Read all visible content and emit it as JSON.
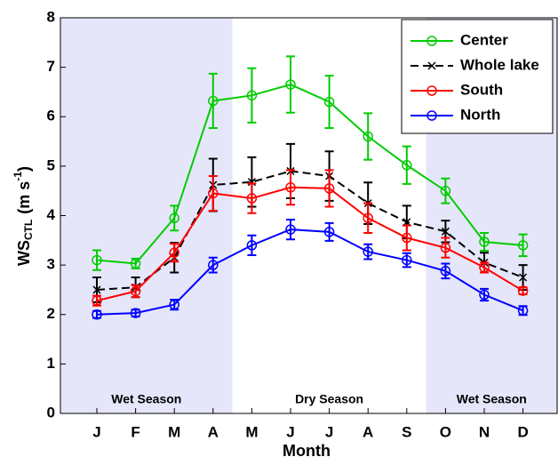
{
  "chart_data": {
    "type": "line",
    "x_label": "Month",
    "y_label": {
      "base": "WS",
      "subscript": "CTL",
      "units": "(m s",
      "superscript": "-1",
      "close": ")"
    },
    "categories": [
      "J",
      "F",
      "M",
      "A",
      "M",
      "J",
      "J",
      "A",
      "S",
      "O",
      "N",
      "D"
    ],
    "ylim": [
      0,
      8
    ],
    "yticks": [
      0,
      1,
      2,
      3,
      4,
      5,
      6,
      7,
      8
    ],
    "regions": [
      {
        "label": "Wet Season",
        "categories": [
          "J",
          "F",
          "M",
          "A"
        ],
        "color": "#e6e6fa"
      },
      {
        "label": "Dry Season",
        "categories": [
          "M",
          "J",
          "J",
          "A",
          "S"
        ],
        "color": "#ffffff"
      },
      {
        "label": "Wet Season",
        "categories": [
          "O",
          "N",
          "D"
        ],
        "color": "#e6e6fa"
      }
    ],
    "legend": "top-right",
    "series": [
      {
        "name": "Center",
        "color": "#00cc00",
        "marker": "o",
        "dashed": false,
        "values": [
          3.1,
          3.03,
          3.95,
          6.32,
          6.43,
          6.65,
          6.3,
          5.6,
          5.02,
          4.5,
          3.47,
          3.4
        ],
        "errors": [
          0.2,
          0.1,
          0.25,
          0.55,
          0.55,
          0.57,
          0.53,
          0.47,
          0.38,
          0.25,
          0.18,
          0.22
        ]
      },
      {
        "name": "Whole lake",
        "color": "#000000",
        "marker": "x",
        "dashed": true,
        "values": [
          2.5,
          2.55,
          3.15,
          4.62,
          4.68,
          4.9,
          4.8,
          4.25,
          3.87,
          3.68,
          3.05,
          2.75
        ],
        "errors": [
          0.25,
          0.2,
          0.3,
          0.53,
          0.5,
          0.55,
          0.5,
          0.42,
          0.33,
          0.22,
          0.2,
          0.25
        ]
      },
      {
        "name": "South",
        "color": "#ff0000",
        "marker": "o",
        "dashed": false,
        "values": [
          2.28,
          2.47,
          3.25,
          4.45,
          4.35,
          4.57,
          4.55,
          3.95,
          3.55,
          3.35,
          2.95,
          2.48
        ],
        "errors": [
          0.1,
          0.12,
          0.18,
          0.35,
          0.3,
          0.35,
          0.37,
          0.3,
          0.25,
          0.2,
          0.1,
          0.07
        ]
      },
      {
        "name": "North",
        "color": "#0000ff",
        "marker": "o",
        "dashed": false,
        "values": [
          2.0,
          2.03,
          2.2,
          3.0,
          3.4,
          3.72,
          3.67,
          3.27,
          3.1,
          2.88,
          2.4,
          2.08
        ],
        "errors": [
          0.07,
          0.07,
          0.1,
          0.15,
          0.2,
          0.2,
          0.18,
          0.15,
          0.14,
          0.15,
          0.12,
          0.09
        ]
      }
    ]
  }
}
